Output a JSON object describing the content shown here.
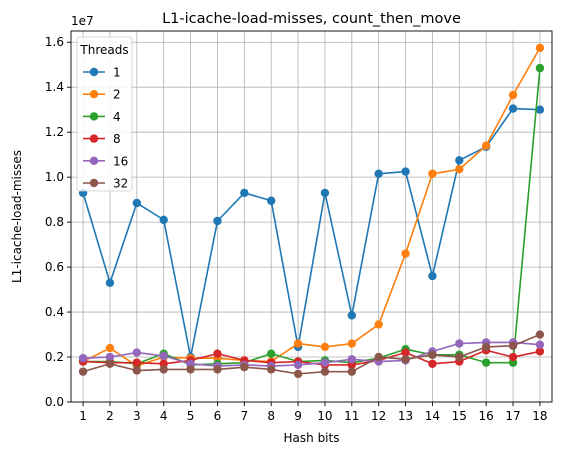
{
  "chart_data": {
    "type": "line",
    "title": "L1-icache-load-misses, count_then_move",
    "xlabel": "Hash bits",
    "ylabel": "L1-icache-load-misses",
    "y_multiplier": "1e7",
    "x": [
      1,
      2,
      3,
      4,
      5,
      6,
      7,
      8,
      9,
      10,
      11,
      12,
      13,
      14,
      15,
      16,
      17,
      18
    ],
    "x_tick_labels": [
      "1",
      "2",
      "3",
      "4",
      "5",
      "6",
      "7",
      "8",
      "9",
      "10",
      "11",
      "12",
      "13",
      "14",
      "15",
      "16",
      "17",
      "18"
    ],
    "y_ticks": [
      0.0,
      0.2,
      0.4,
      0.6,
      0.8,
      1.0,
      1.2,
      1.4,
      1.6
    ],
    "y_tick_labels": [
      "0.0",
      "0.2",
      "0.4",
      "0.6",
      "0.8",
      "1.0",
      "1.2",
      "1.4",
      "1.6"
    ],
    "ylim": [
      0.0,
      1.65
    ],
    "xlim": [
      0.55,
      18.45
    ],
    "grid": true,
    "legend": {
      "title": "Threads",
      "position": "upper-left"
    },
    "series": [
      {
        "name": "1",
        "color": "#1f77b4",
        "values": [
          0.93,
          0.53,
          0.885,
          0.81,
          0.2,
          0.805,
          0.93,
          0.895,
          0.245,
          0.93,
          0.385,
          1.015,
          1.025,
          0.56,
          1.075,
          1.135,
          1.305,
          1.3
        ]
      },
      {
        "name": "2",
        "color": "#ff7f0e",
        "values": [
          0.18,
          0.24,
          0.16,
          0.2,
          0.195,
          0.195,
          0.185,
          0.18,
          0.26,
          0.245,
          0.26,
          0.345,
          0.66,
          1.015,
          1.035,
          1.14,
          1.365,
          1.575
        ]
      },
      {
        "name": "4",
        "color": "#2ca02c",
        "values": [
          0.18,
          0.18,
          0.17,
          0.215,
          0.165,
          0.17,
          0.175,
          0.215,
          0.18,
          0.185,
          0.175,
          0.195,
          0.235,
          0.21,
          0.21,
          0.175,
          0.175,
          1.485
        ]
      },
      {
        "name": "8",
        "color": "#d62728",
        "values": [
          0.18,
          0.175,
          0.175,
          0.17,
          0.185,
          0.215,
          0.185,
          0.175,
          0.18,
          0.165,
          0.165,
          0.185,
          0.22,
          0.17,
          0.18,
          0.23,
          0.2,
          0.225
        ]
      },
      {
        "name": "16",
        "color": "#9467bd",
        "values": [
          0.195,
          0.2,
          0.22,
          0.205,
          0.17,
          0.16,
          0.165,
          0.16,
          0.165,
          0.175,
          0.19,
          0.18,
          0.185,
          0.225,
          0.26,
          0.265,
          0.265,
          0.255
        ]
      },
      {
        "name": "32",
        "color": "#8c564b",
        "values": [
          0.135,
          0.17,
          0.14,
          0.145,
          0.145,
          0.145,
          0.155,
          0.145,
          0.125,
          0.135,
          0.135,
          0.2,
          0.19,
          0.21,
          0.2,
          0.245,
          0.25,
          0.3
        ]
      }
    ]
  }
}
